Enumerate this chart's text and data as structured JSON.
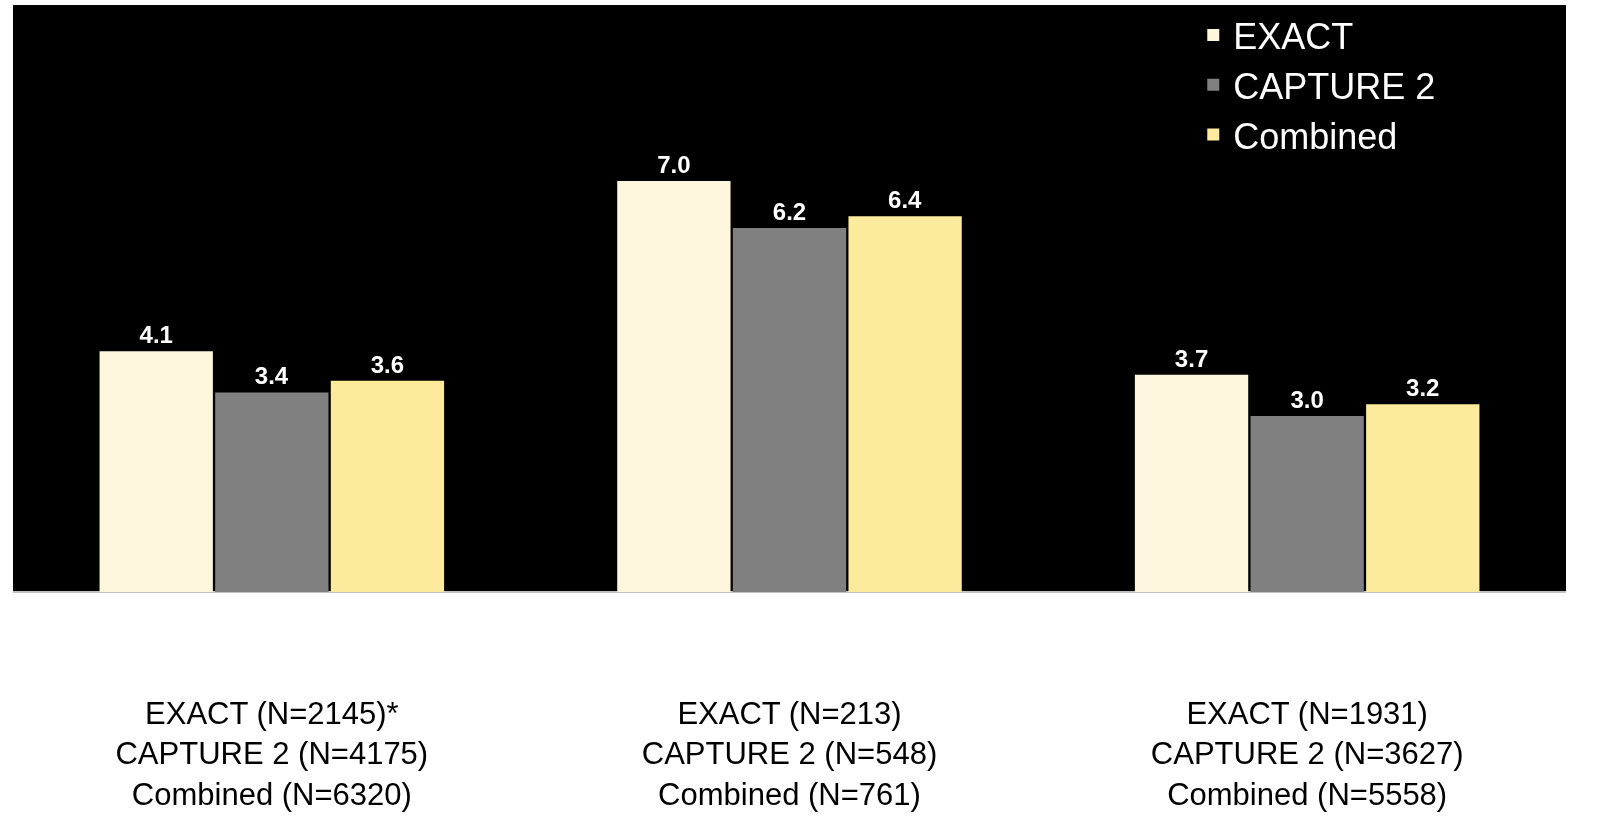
{
  "chart_data": {
    "type": "bar",
    "categories": [
      "EXACT (N=2145)*\nCAPTURE 2 (N=4175)\nCombined (N=6320)",
      "EXACT (N=213)\nCAPTURE 2 (N=548)\nCombined (N=761)",
      "EXACT (N=1931)\nCAPTURE 2 (N=3627)\nCombined (N=5558)"
    ],
    "series": [
      {
        "name": "EXACT",
        "color": "#fef7dd",
        "values": [
          4.1,
          7,
          3.7
        ],
        "value_labels": [
          "4.1",
          "7.0",
          "3.7"
        ]
      },
      {
        "name": "CAPTURE 2",
        "color": "#808080",
        "values": [
          3.4,
          6.2,
          3
        ],
        "value_labels": [
          "3.4",
          "6.2",
          "3.0"
        ]
      },
      {
        "name": "Combined",
        "color": "#fdeb9d",
        "values": [
          3.6,
          6.4,
          3.2
        ],
        "value_labels": [
          "3.6",
          "6.4",
          "3.2"
        ]
      }
    ],
    "ylim": [
      0,
      10
    ],
    "legend": "top right",
    "grid": false
  }
}
